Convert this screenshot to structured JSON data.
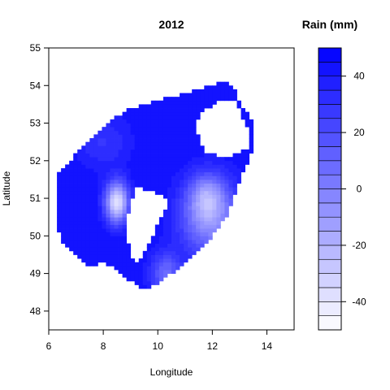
{
  "chart_data": {
    "type": "heatmap",
    "title": "2012",
    "xlabel": "Longitude",
    "ylabel": "Latitude",
    "xlim": [
      6,
      15
    ],
    "ylim": [
      47.5,
      55
    ],
    "x_ticks": [
      "6",
      "8",
      "10",
      "12",
      "14"
    ],
    "y_ticks": [
      "48",
      "49",
      "50",
      "51",
      "52",
      "53",
      "54",
      "55"
    ],
    "legend": {
      "title": "Rain (mm)",
      "range": [
        -50,
        50
      ],
      "step": 5,
      "ticks": [
        "-40",
        "-20",
        "0",
        "20",
        "40"
      ],
      "low_color": "#ffffff",
      "high_color": "#0000ff",
      "placement": "right"
    },
    "region_outline": [
      [
        6.3,
        51.7
      ],
      [
        6.7,
        51.9
      ],
      [
        7.0,
        52.2
      ],
      [
        7.5,
        52.6
      ],
      [
        8.0,
        52.9
      ],
      [
        8.5,
        53.2
      ],
      [
        9.0,
        53.4
      ],
      [
        9.5,
        53.5
      ],
      [
        10.0,
        53.6
      ],
      [
        11.0,
        53.8
      ],
      [
        12.3,
        54.1
      ],
      [
        12.8,
        54.0
      ],
      [
        13.0,
        53.6
      ],
      [
        13.5,
        53.0
      ],
      [
        13.5,
        52.3
      ],
      [
        13.0,
        51.5
      ],
      [
        12.8,
        51.0
      ],
      [
        12.5,
        50.5
      ],
      [
        12.0,
        50.0
      ],
      [
        11.0,
        49.3
      ],
      [
        10.5,
        49.0
      ],
      [
        10.0,
        48.7
      ],
      [
        9.5,
        48.6
      ],
      [
        9.0,
        48.8
      ],
      [
        8.5,
        49.1
      ],
      [
        8.0,
        49.3
      ],
      [
        7.5,
        49.2
      ],
      [
        7.0,
        49.5
      ],
      [
        6.5,
        49.8
      ],
      [
        6.3,
        50.3
      ],
      [
        6.3,
        51.0
      ]
    ],
    "holes": [
      [
        [
          12.8,
          53.6
        ],
        [
          13.3,
          52.9
        ],
        [
          13.3,
          52.3
        ],
        [
          12.5,
          52.1
        ],
        [
          11.8,
          52.2
        ],
        [
          11.3,
          52.9
        ],
        [
          11.6,
          53.3
        ],
        [
          12.3,
          53.6
        ]
      ],
      [
        [
          9.2,
          51.3
        ],
        [
          9.8,
          51.2
        ],
        [
          10.4,
          51.0
        ],
        [
          10.2,
          50.6
        ],
        [
          9.8,
          50.0
        ],
        [
          9.3,
          49.3
        ],
        [
          9.0,
          49.5
        ],
        [
          8.8,
          50.2
        ],
        [
          9.0,
          50.8
        ]
      ]
    ],
    "value_field": {
      "background": 44,
      "peaks": [
        {
          "lon": 8.5,
          "lat": 50.9,
          "rain": -50,
          "sx": 0.3,
          "sy": 0.38
        },
        {
          "lon": 11.9,
          "lat": 50.5,
          "rain": -15,
          "sx": 0.75,
          "sy": 0.7
        },
        {
          "lon": 11.8,
          "lat": 51.1,
          "rain": 10,
          "sx": 0.45,
          "sy": 0.4
        },
        {
          "lon": 10.3,
          "lat": 49.0,
          "rain": 5,
          "sx": 0.4,
          "sy": 0.4
        },
        {
          "lon": 8.0,
          "lat": 52.5,
          "rain": 28,
          "sx": 0.7,
          "sy": 0.5
        }
      ]
    }
  }
}
